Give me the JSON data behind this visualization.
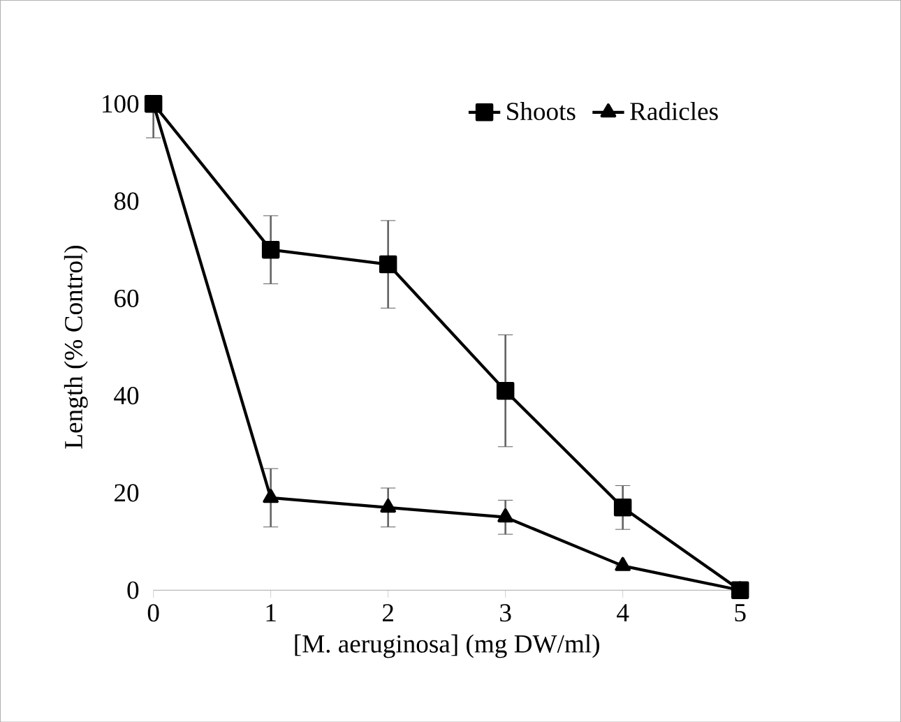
{
  "chart_data": {
    "type": "line",
    "xlabel": "[M. aeruginosa] (mg DW/ml)",
    "ylabel": "Length (% Control)",
    "x": [
      0,
      1,
      2,
      3,
      4,
      5
    ],
    "series": [
      {
        "name": "Shoots",
        "color": "#000000",
        "marker": "square",
        "values": [
          100,
          70,
          67,
          41,
          17,
          0
        ],
        "errors": [
          [
            93,
            100
          ],
          7,
          9,
          11.5,
          4.5,
          null
        ]
      },
      {
        "name": "Radicles",
        "color": "#000000",
        "marker": "triangle",
        "values": [
          100,
          19,
          17,
          15,
          5,
          0
        ],
        "errors": [
          null,
          6,
          4,
          3.5,
          null,
          null
        ]
      }
    ],
    "xlim": [
      0,
      5
    ],
    "ylim": [
      0,
      100
    ],
    "xticks": [
      0,
      1,
      2,
      3,
      4,
      5
    ],
    "yticks": [
      0,
      20,
      40,
      60,
      80,
      100
    ],
    "grid": false,
    "legend": "top right",
    "line_style": "solid"
  }
}
